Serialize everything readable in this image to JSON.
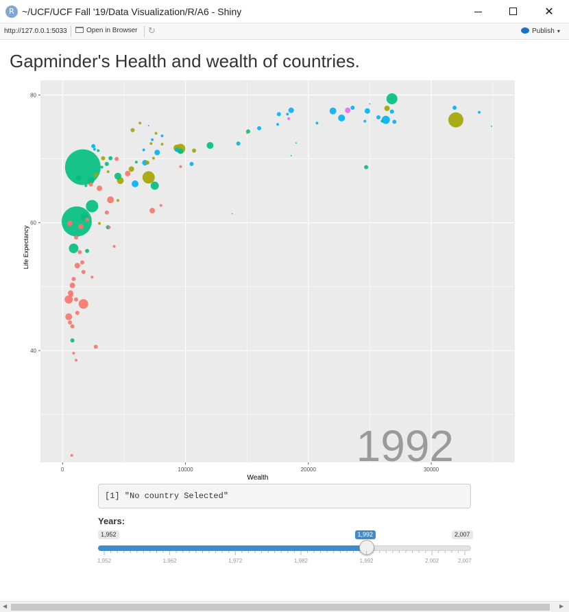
{
  "window": {
    "title": "~/UCF/UCF Fall '19/Data Visualization/R/A6 - Shiny",
    "app_icon": "R",
    "minimize_glyph": "",
    "maximize_glyph": "",
    "close_glyph": "✕"
  },
  "toolbar": {
    "url": "http://127.0.0.1:5033",
    "open_browser_label": "Open in Browser",
    "publish_label": "Publish",
    "refresh_icon": "refresh-icon",
    "caret": "▾"
  },
  "page": {
    "title": "Gapminder's Health and wealth of countries."
  },
  "colors": {
    "panel_bg": "#ebebeb",
    "grid": "#ffffff",
    "Africa": "#f8766d",
    "Americas": "#a3a500",
    "Asia": "#00bf7d",
    "Europe": "#00b0f6",
    "Oceania": "#e76bf3",
    "slider_accent": "#428bca"
  },
  "chart_data": {
    "type": "scatter",
    "title": "",
    "xlabel": "Wealth",
    "ylabel": "Life Expectancy",
    "xlim": [
      -1800,
      36800
    ],
    "ylim": [
      22.5,
      82.3
    ],
    "x_ticks": [
      0,
      10000,
      20000,
      30000
    ],
    "y_ticks": [
      40,
      60,
      80
    ],
    "grid": true,
    "legend": "none",
    "year_label": "1992",
    "series": [
      {
        "color_key": "Africa",
        "points": [
          {
            "x": 750,
            "y": 23.6,
            "s": 2
          },
          {
            "x": 1500,
            "y": 59.4,
            "s": 4
          },
          {
            "x": 600,
            "y": 59.9,
            "s": 4
          },
          {
            "x": 1100,
            "y": 57.7,
            "s": 3
          },
          {
            "x": 1400,
            "y": 55.4,
            "s": 3
          },
          {
            "x": 1600,
            "y": 53.8,
            "s": 3
          },
          {
            "x": 1200,
            "y": 53.3,
            "s": 4
          },
          {
            "x": 1700,
            "y": 52.3,
            "s": 3
          },
          {
            "x": 900,
            "y": 51.2,
            "s": 3
          },
          {
            "x": 800,
            "y": 50.2,
            "s": 4
          },
          {
            "x": 650,
            "y": 49.0,
            "s": 4
          },
          {
            "x": 700,
            "y": 48.7,
            "s": 3
          },
          {
            "x": 500,
            "y": 48.0,
            "s": 6
          },
          {
            "x": 1100,
            "y": 48.0,
            "s": 3
          },
          {
            "x": 1700,
            "y": 47.3,
            "s": 7
          },
          {
            "x": 1200,
            "y": 45.9,
            "s": 3
          },
          {
            "x": 500,
            "y": 45.3,
            "s": 5
          },
          {
            "x": 600,
            "y": 44.4,
            "s": 3
          },
          {
            "x": 800,
            "y": 43.8,
            "s": 3
          },
          {
            "x": 2700,
            "y": 40.6,
            "s": 3
          },
          {
            "x": 900,
            "y": 39.6,
            "s": 2
          },
          {
            "x": 1100,
            "y": 38.5,
            "s": 2
          },
          {
            "x": 2400,
            "y": 51.5,
            "s": 2
          },
          {
            "x": 3900,
            "y": 63.6,
            "s": 5
          },
          {
            "x": 2300,
            "y": 66.0,
            "s": 3
          },
          {
            "x": 3000,
            "y": 65.4,
            "s": 4
          },
          {
            "x": 3600,
            "y": 61.6,
            "s": 3
          },
          {
            "x": 4200,
            "y": 56.3,
            "s": 2
          },
          {
            "x": 5300,
            "y": 67.7,
            "s": 4
          },
          {
            "x": 7300,
            "y": 61.9,
            "s": 4
          },
          {
            "x": 4400,
            "y": 70.0,
            "s": 3
          },
          {
            "x": 9600,
            "y": 68.8,
            "s": 2
          },
          {
            "x": 13800,
            "y": 61.4,
            "s": 1
          },
          {
            "x": 8000,
            "y": 62.7,
            "s": 2
          },
          {
            "x": 3800,
            "y": 59.3,
            "s": 2
          },
          {
            "x": 2000,
            "y": 60.5,
            "s": 3
          }
        ]
      },
      {
        "color_key": "Americas",
        "points": [
          {
            "x": 32000,
            "y": 76.1,
            "s": 11
          },
          {
            "x": 7000,
            "y": 67.1,
            "s": 9
          },
          {
            "x": 9600,
            "y": 71.6,
            "s": 7
          },
          {
            "x": 9300,
            "y": 71.7,
            "s": 5
          },
          {
            "x": 5600,
            "y": 68.4,
            "s": 4
          },
          {
            "x": 4700,
            "y": 66.6,
            "s": 5
          },
          {
            "x": 10700,
            "y": 71.3,
            "s": 3
          },
          {
            "x": 3300,
            "y": 70.1,
            "s": 3
          },
          {
            "x": 2700,
            "y": 67.5,
            "s": 3
          },
          {
            "x": 4500,
            "y": 63.5,
            "s": 2
          },
          {
            "x": 7600,
            "y": 74.0,
            "s": 2
          },
          {
            "x": 6300,
            "y": 75.6,
            "s": 2
          },
          {
            "x": 5700,
            "y": 74.5,
            "s": 3
          },
          {
            "x": 7200,
            "y": 72.4,
            "s": 2
          },
          {
            "x": 6900,
            "y": 69.4,
            "s": 3
          },
          {
            "x": 8100,
            "y": 72.3,
            "s": 2
          },
          {
            "x": 26400,
            "y": 77.9,
            "s": 4
          },
          {
            "x": 3000,
            "y": 59.9,
            "s": 2
          },
          {
            "x": 3700,
            "y": 68.0,
            "s": 2
          },
          {
            "x": 7400,
            "y": 70.1,
            "s": 2
          },
          {
            "x": 15000,
            "y": 74.0,
            "s": 1
          }
        ]
      },
      {
        "color_key": "Asia",
        "points": [
          {
            "x": 1650,
            "y": 68.7,
            "s": 26
          },
          {
            "x": 1150,
            "y": 60.2,
            "s": 22
          },
          {
            "x": 900,
            "y": 56.0,
            "s": 7
          },
          {
            "x": 2400,
            "y": 62.6,
            "s": 9
          },
          {
            "x": 1800,
            "y": 60.9,
            "s": 6
          },
          {
            "x": 2300,
            "y": 66.6,
            "s": 5
          },
          {
            "x": 7500,
            "y": 65.8,
            "s": 6
          },
          {
            "x": 12000,
            "y": 72.1,
            "s": 5
          },
          {
            "x": 26800,
            "y": 79.4,
            "s": 8
          },
          {
            "x": 24700,
            "y": 68.7,
            "s": 3
          },
          {
            "x": 9600,
            "y": 71.2,
            "s": 4
          },
          {
            "x": 15100,
            "y": 74.3,
            "s": 3
          },
          {
            "x": 4500,
            "y": 67.3,
            "s": 5
          },
          {
            "x": 3600,
            "y": 69.2,
            "s": 3
          },
          {
            "x": 3900,
            "y": 70.1,
            "s": 3
          },
          {
            "x": 2000,
            "y": 55.6,
            "s": 3
          },
          {
            "x": 800,
            "y": 41.6,
            "s": 3
          },
          {
            "x": 1300,
            "y": 67.0,
            "s": 4
          },
          {
            "x": 3700,
            "y": 59.3,
            "s": 3
          },
          {
            "x": 18600,
            "y": 70.5,
            "s": 1
          },
          {
            "x": 34900,
            "y": 75.1,
            "s": 1
          },
          {
            "x": 19000,
            "y": 72.5,
            "s": 1
          },
          {
            "x": 6000,
            "y": 69.5,
            "s": 2
          },
          {
            "x": 3200,
            "y": 68.7,
            "s": 2
          },
          {
            "x": 2900,
            "y": 71.3,
            "s": 2
          },
          {
            "x": 26000,
            "y": 75.9,
            "s": 2
          },
          {
            "x": 1900,
            "y": 65.8,
            "s": 2
          }
        ]
      },
      {
        "color_key": "Europe",
        "points": [
          {
            "x": 5900,
            "y": 66.1,
            "s": 5
          },
          {
            "x": 7700,
            "y": 71.0,
            "s": 4
          },
          {
            "x": 6700,
            "y": 69.4,
            "s": 4
          },
          {
            "x": 10500,
            "y": 69.2,
            "s": 3
          },
          {
            "x": 14300,
            "y": 72.4,
            "s": 3
          },
          {
            "x": 16000,
            "y": 74.8,
            "s": 3
          },
          {
            "x": 17500,
            "y": 75.4,
            "s": 2
          },
          {
            "x": 17600,
            "y": 77.0,
            "s": 3
          },
          {
            "x": 18300,
            "y": 77.0,
            "s": 2
          },
          {
            "x": 18600,
            "y": 77.6,
            "s": 4
          },
          {
            "x": 20700,
            "y": 75.6,
            "s": 2
          },
          {
            "x": 22000,
            "y": 77.5,
            "s": 5
          },
          {
            "x": 22700,
            "y": 76.4,
            "s": 5
          },
          {
            "x": 23600,
            "y": 78.0,
            "s": 3
          },
          {
            "x": 24800,
            "y": 77.5,
            "s": 4
          },
          {
            "x": 24600,
            "y": 75.9,
            "s": 2
          },
          {
            "x": 25700,
            "y": 76.5,
            "s": 3
          },
          {
            "x": 26300,
            "y": 76.1,
            "s": 6
          },
          {
            "x": 26800,
            "y": 77.4,
            "s": 3
          },
          {
            "x": 27000,
            "y": 75.8,
            "s": 3
          },
          {
            "x": 31900,
            "y": 78.0,
            "s": 3
          },
          {
            "x": 33900,
            "y": 77.3,
            "s": 2
          },
          {
            "x": 7000,
            "y": 75.2,
            "s": 1
          },
          {
            "x": 2500,
            "y": 72.0,
            "s": 3
          },
          {
            "x": 2600,
            "y": 71.5,
            "s": 2
          },
          {
            "x": 9300,
            "y": 71.4,
            "s": 3
          },
          {
            "x": 7300,
            "y": 73.0,
            "s": 2
          },
          {
            "x": 8100,
            "y": 73.6,
            "s": 2
          },
          {
            "x": 25000,
            "y": 78.6,
            "s": 1
          },
          {
            "x": 6600,
            "y": 71.4,
            "s": 2
          }
        ]
      },
      {
        "color_key": "Oceania",
        "points": [
          {
            "x": 23200,
            "y": 77.6,
            "s": 4
          },
          {
            "x": 18400,
            "y": 76.3,
            "s": 2
          }
        ]
      }
    ]
  },
  "output": {
    "text": "[1] \"No country Selected\""
  },
  "slider": {
    "label": "Years:",
    "min_label": "1,952",
    "max_label": "2,007",
    "value_label": "1,992",
    "min": 1952,
    "max": 2007,
    "value": 1992,
    "ticks": [
      "1,952",
      "1,962",
      "1,972",
      "1,982",
      "1,992",
      "2,002",
      "2,007"
    ],
    "tick_values": [
      1952,
      1962,
      1972,
      1982,
      1992,
      2002,
      2007
    ]
  }
}
